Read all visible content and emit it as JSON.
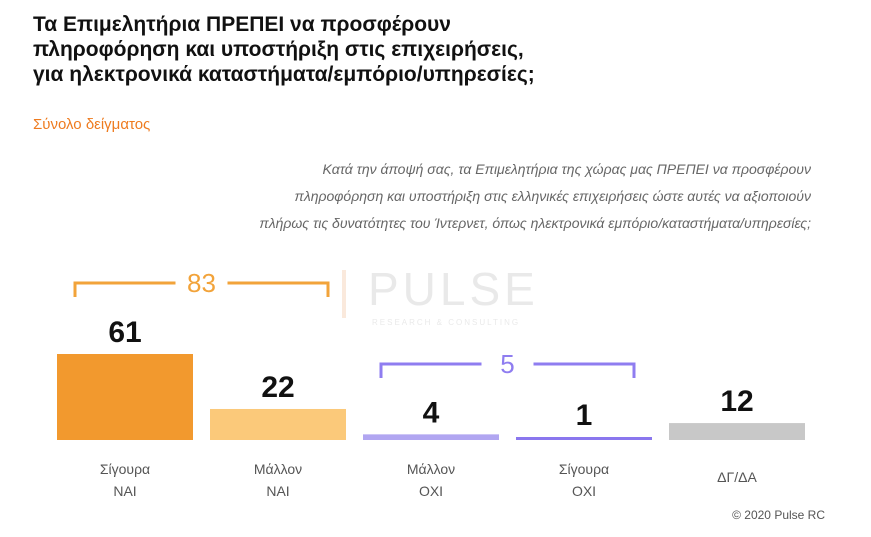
{
  "header": {
    "title_lines": [
      "Τα Επιμελητήρια ΠΡΕΠΕΙ να προσφέρουν",
      "πληροφόρηση και υποστήριξη στις επιχειρήσεις,",
      "για ηλεκτρονικά καταστήματα/εμπόριο/υπηρεσίες;"
    ],
    "subtitle": "Σύνολο δείγματος"
  },
  "question_lines": [
    "Κατά την άποψή σας, τα Επιμελητήρια της χώρας μας ΠΡΕΠΕΙ να προσφέρουν",
    "πληροφόρηση και υποστήριξη στις ελληνικές επιχειρήσεις ώστε αυτές να αξιοποιούν",
    "πλήρως τις δυνατότητες του Ίντερνετ, όπως ηλεκτρονικά εμπόριο/καταστήματα/υπηρεσίες;"
  ],
  "watermark": {
    "text": "PULSE",
    "subtext": "RESEARCH & CONSULTING"
  },
  "footer": {
    "copyright": "© 2020 Pulse RC"
  },
  "chart_data": {
    "type": "bar",
    "categories": [
      [
        "Σίγουρα",
        "ΝΑΙ"
      ],
      [
        "Μάλλον",
        "ΝΑΙ"
      ],
      [
        "Μάλλον",
        "ΟΧΙ"
      ],
      [
        "Σίγουρα",
        "ΟΧΙ"
      ],
      [
        "ΔΓ/ΔΑ"
      ]
    ],
    "values": [
      61,
      22,
      4,
      1,
      12
    ],
    "colors": [
      "#f2992e",
      "#fbc97a",
      "#b1a6f1",
      "#8a77ee",
      "#c8c8c8"
    ],
    "groups": [
      {
        "label": "83",
        "from": 0,
        "to": 1,
        "color": "#f2a33a"
      },
      {
        "label": "5",
        "from": 2,
        "to": 3,
        "color": "#8f7df0"
      }
    ],
    "title": "",
    "xlabel": "",
    "ylabel": "",
    "ylim": [
      0,
      61
    ],
    "grid": false
  }
}
